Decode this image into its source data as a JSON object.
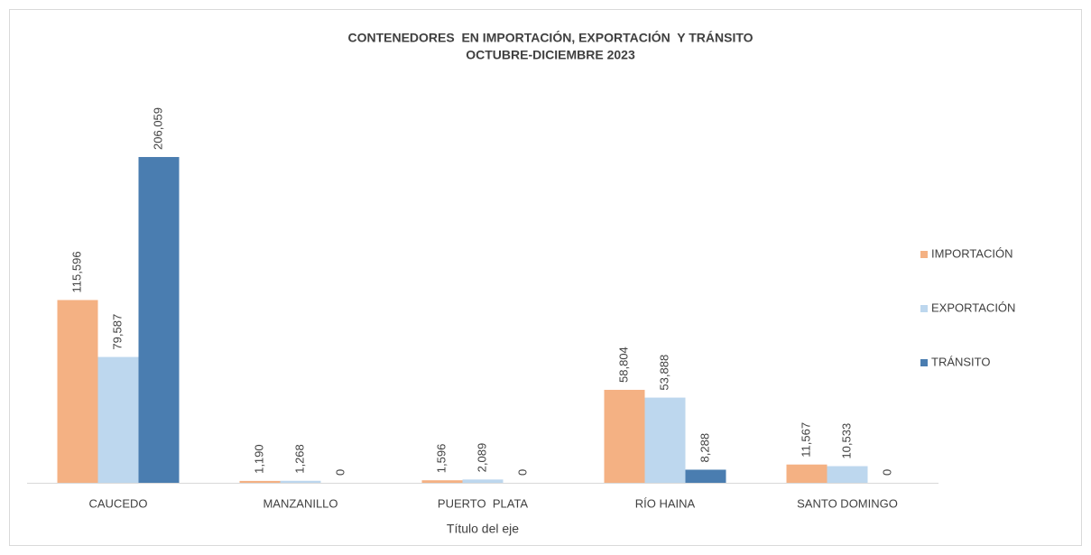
{
  "chart_data": {
    "type": "bar",
    "title": "CONTENEDORES  EN IMPORTACIÓN, EXPORTACIÓN  Y TRÁNSITO",
    "subtitle": "OCTUBRE-DICIEMBRE 2023",
    "x_label": "Título del eje",
    "categories": [
      "CAUCEDO",
      "MANZANILLO",
      "PUERTO  PLATA",
      "RÍO HAINA",
      "SANTO DOMINGO"
    ],
    "series": [
      {
        "name": "IMPORTACIÓN",
        "color": "#f4b183",
        "values": [
          115596,
          1190,
          1596,
          58804,
          11567
        ],
        "value_labels": [
          "115,596",
          "1,190",
          "1,596",
          "58,804",
          "11,567"
        ]
      },
      {
        "name": "EXPORTACIÓN",
        "color": "#bdd7ee",
        "values": [
          79587,
          1268,
          2089,
          53888,
          10533
        ],
        "value_labels": [
          "79,587",
          "1,268",
          "2,089",
          "53,888",
          "10,533"
        ]
      },
      {
        "name": "TRÁNSITO",
        "color": "#4a7db0",
        "values": [
          206059,
          0,
          0,
          8288,
          0
        ],
        "value_labels": [
          "206,059",
          "0",
          "0",
          "8,288",
          "0"
        ]
      }
    ],
    "ylim": [
      0,
      250000
    ],
    "legend": "right"
  }
}
